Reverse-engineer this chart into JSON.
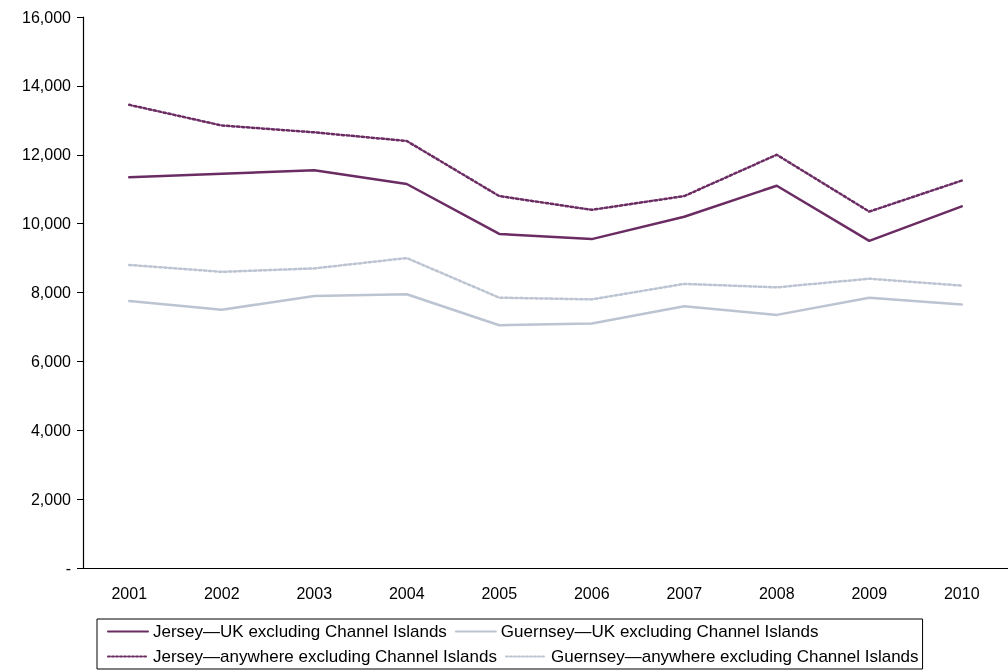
{
  "chart_data": {
    "type": "line",
    "categories": [
      "2001",
      "2002",
      "2003",
      "2004",
      "2005",
      "2006",
      "2007",
      "2008",
      "2009",
      "2010"
    ],
    "series": [
      {
        "name": "Jersey—UK excluding Channel Islands",
        "color": "#6b2c63",
        "line_style": "solid",
        "values": [
          11350,
          11450,
          11550,
          11150,
          9700,
          9550,
          10200,
          11100,
          9500,
          10500
        ]
      },
      {
        "name": "Guernsey—UK excluding Channel Islands",
        "color": "#bcc3d1",
        "line_style": "solid",
        "values": [
          7750,
          7500,
          7900,
          7950,
          7050,
          7100,
          7600,
          7350,
          7850,
          7650
        ]
      },
      {
        "name": "Jersey—anywhere excluding Channel Islands",
        "color": "#6b2c63",
        "line_style": "dotted",
        "values": [
          13450,
          12850,
          12650,
          12400,
          10800,
          10400,
          10800,
          12000,
          10350,
          11250
        ]
      },
      {
        "name": "Guernsey—anywhere excluding Channel Islands",
        "color": "#bcc3d1",
        "line_style": "dotted",
        "values": [
          8800,
          8600,
          8700,
          9000,
          7850,
          7800,
          8250,
          8150,
          8400,
          8200
        ]
      }
    ],
    "ylim": [
      0,
      16000
    ],
    "yticks": [
      {
        "value": 0,
        "label": "-"
      },
      {
        "value": 2000,
        "label": "2,000"
      },
      {
        "value": 4000,
        "label": "4,000"
      },
      {
        "value": 6000,
        "label": "6,000"
      },
      {
        "value": 8000,
        "label": "8,000"
      },
      {
        "value": 10000,
        "label": "10,000"
      },
      {
        "value": 12000,
        "label": "12,000"
      },
      {
        "value": 14000,
        "label": "14,000"
      },
      {
        "value": 16000,
        "label": "16,000"
      }
    ],
    "grid": false,
    "legend": "bottom",
    "marker": "none"
  }
}
